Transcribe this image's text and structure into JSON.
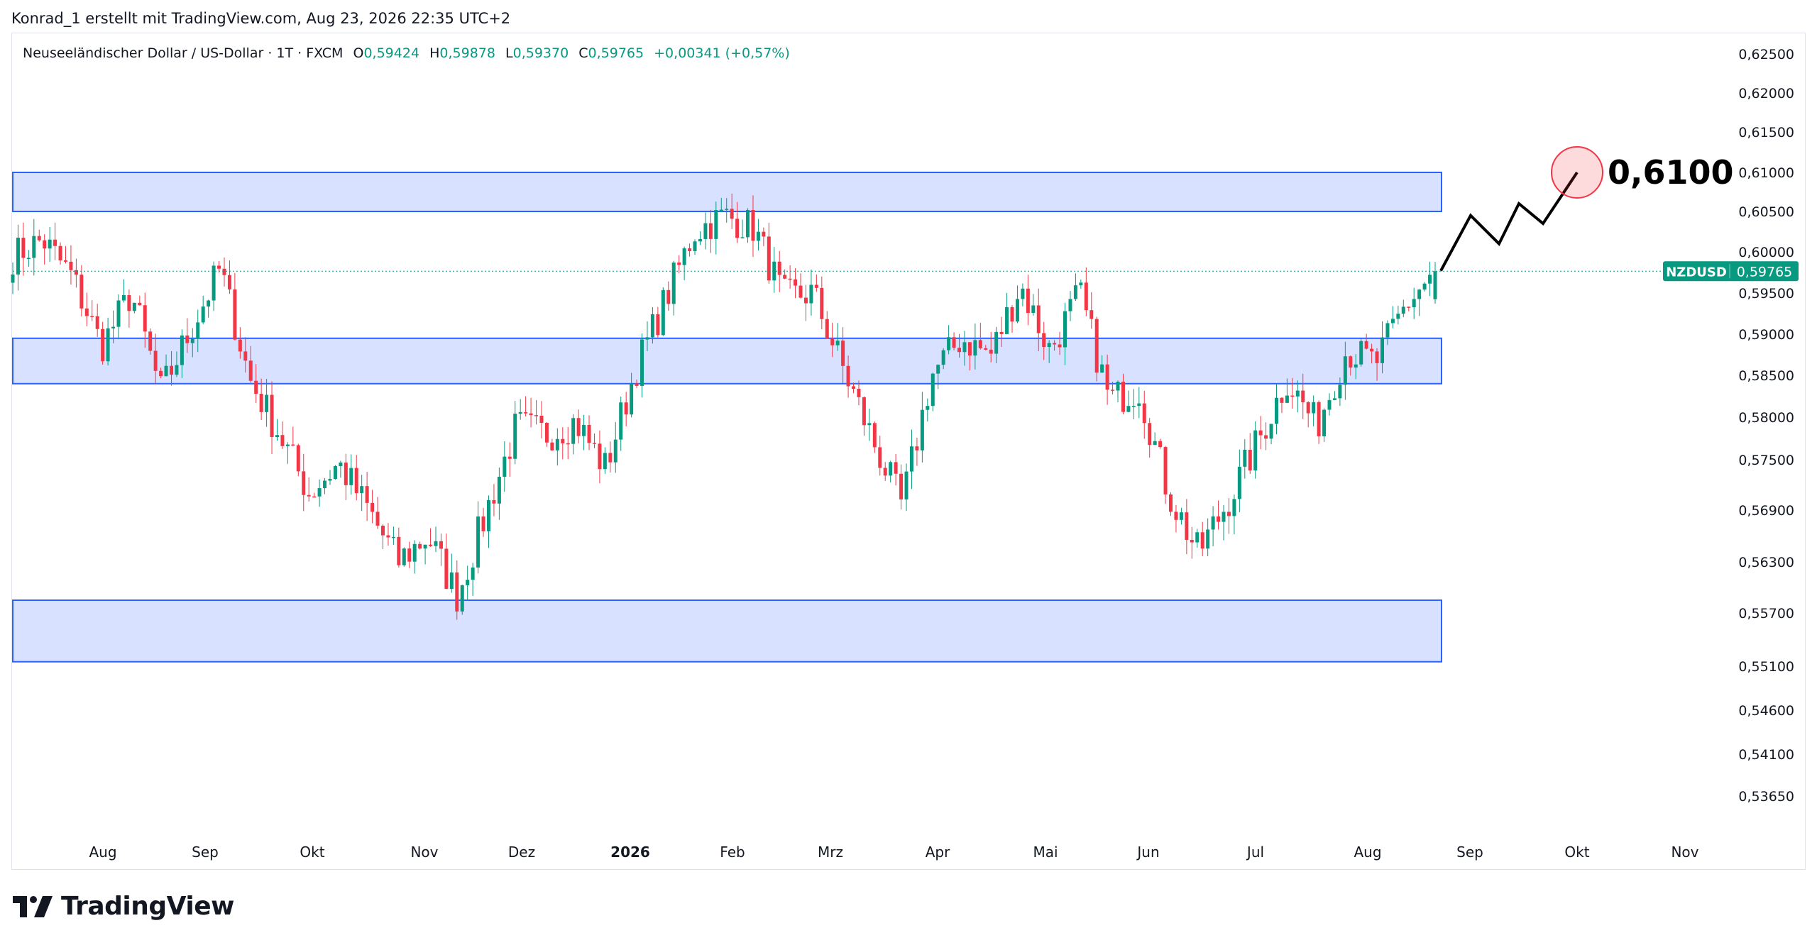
{
  "header": {
    "credit": "Konrad_1 erstellt mit TradingView.com, Aug 23, 2026 22:35 UTC+2"
  },
  "symbol": {
    "name": "Neuseeländischer Dollar / US-Dollar · 1T · FXCM",
    "o_label": "O",
    "o_value": "0,59424",
    "h_label": "H",
    "h_value": "0,59878",
    "l_label": "L",
    "l_value": "0,59370",
    "c_label": "C",
    "c_value": "0,59765",
    "change": "+0,00341 (+0,57%)"
  },
  "price_badge": {
    "ticker": "NZDUSD",
    "price": "0,59765"
  },
  "annotation": {
    "target_label": "0,6100"
  },
  "brand": {
    "name": "TradingView"
  },
  "colors": {
    "up": "#089981",
    "down": "#f23645",
    "zone_fill": "#d8e1ff",
    "zone_border": "#2962ff",
    "target_circle": "#f23645",
    "badge": "#089981"
  },
  "chart_data": {
    "type": "candlestick",
    "y_axis": {
      "ticks": [
        "0,62500",
        "0,62000",
        "0,61500",
        "0,61000",
        "0,60500",
        "0,60000",
        "0,59500",
        "0,59000",
        "0,58500",
        "0,58000",
        "0,57500",
        "0,56900",
        "0,56300",
        "0,55700",
        "0,55100",
        "0,54600",
        "0,54100",
        "0,53650"
      ],
      "range": [
        0.5325,
        0.627
      ]
    },
    "x_axis": {
      "ticks": [
        "Aug",
        "Sep",
        "Okt",
        "Nov",
        "Dez",
        "2026",
        "Feb",
        "Mrz",
        "Apr",
        "Mai",
        "Jun",
        "Jul",
        "Aug",
        "Sep",
        "Okt",
        "Nov"
      ],
      "bold_ticks": [
        "2026"
      ]
    },
    "series": [
      {
        "name": "NZDUSD",
        "last": 0.59765,
        "ohlc_last": {
          "open": 0.59424,
          "high": 0.59878,
          "low": 0.5937,
          "close": 0.59765
        }
      }
    ],
    "price_path": [
      [
        "Jul",
        0.5995
      ],
      [
        "Jul",
        0.6015
      ],
      [
        "Aug",
        0.597
      ],
      [
        "Aug",
        0.5885
      ],
      [
        "Aug",
        0.595
      ],
      [
        "Sep",
        0.583
      ],
      [
        "Sep",
        0.5905
      ],
      [
        "Sep",
        0.598
      ],
      [
        "Okt",
        0.5845
      ],
      [
        "Okt",
        0.578
      ],
      [
        "Okt",
        0.571
      ],
      [
        "Okt",
        0.5745
      ],
      [
        "Nov",
        0.569
      ],
      [
        "Nov",
        0.563
      ],
      [
        "Nov",
        0.566
      ],
      [
        "Dez",
        0.559
      ],
      [
        "Dez",
        0.569
      ],
      [
        "Dez",
        0.579
      ],
      [
        "Dez",
        0.578
      ],
      [
        "2026",
        0.5795
      ],
      [
        "2026",
        0.574
      ],
      [
        "2026",
        0.5855
      ],
      [
        "2026",
        0.594
      ],
      [
        "Feb",
        0.6025
      ],
      [
        "Feb",
        0.6045
      ],
      [
        "Feb",
        0.603
      ],
      [
        "Mrz",
        0.5945
      ],
      [
        "Mrz",
        0.595
      ],
      [
        "Mrz",
        0.586
      ],
      [
        "Apr",
        0.5775
      ],
      [
        "Apr",
        0.5695
      ],
      [
        "Apr",
        0.585
      ],
      [
        "Apr",
        0.5895
      ],
      [
        "Mai",
        0.5875
      ],
      [
        "Mai",
        0.596
      ],
      [
        "Mai",
        0.588
      ],
      [
        "Jun",
        0.595
      ],
      [
        "Jun",
        0.582
      ],
      [
        "Jun",
        0.5835
      ],
      [
        "Jul",
        0.571
      ],
      [
        "Jul",
        0.564
      ],
      [
        "Jul",
        0.57
      ],
      [
        "Jul",
        0.577
      ],
      [
        "Aug",
        0.5845
      ],
      [
        "Aug",
        0.579
      ],
      [
        "Aug",
        0.588
      ],
      [
        "Aug",
        0.5865
      ],
      [
        "Aug",
        0.5935
      ],
      [
        "Aug",
        0.59765
      ]
    ],
    "zones": [
      {
        "from": 0.605,
        "to": 0.61
      },
      {
        "from": 0.584,
        "to": 0.5895
      },
      {
        "from": 0.5515,
        "to": 0.5585
      }
    ],
    "projection": [
      0.5977,
      0.6045,
      0.601,
      0.606,
      0.6035,
      0.61
    ],
    "target": 0.61
  }
}
